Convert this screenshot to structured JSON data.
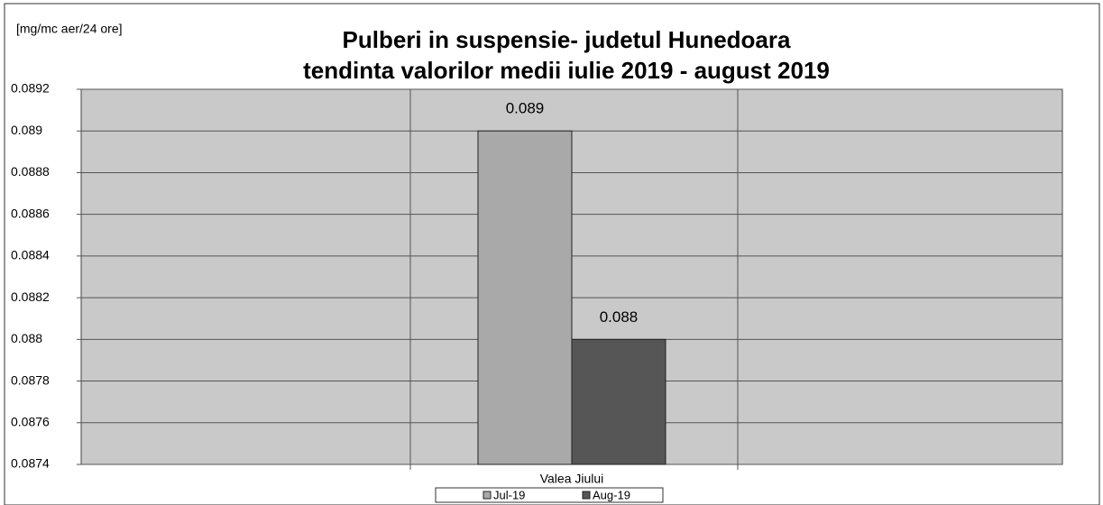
{
  "chart_data": {
    "type": "bar",
    "title": "Pulberi in suspensie- judetul Hunedoara",
    "subtitle": "tendinta valorilor medii iulie 2019 - august 2019",
    "y_axis_label": "[mg/mc aer/24 ore]",
    "categories": [
      "Valea Jiului"
    ],
    "series": [
      {
        "name": "Jul-19",
        "color": "#a9a9a9",
        "values": [
          0.089
        ]
      },
      {
        "name": "Aug-19",
        "color": "#565656",
        "values": [
          0.088
        ]
      }
    ],
    "ylim": [
      0.0874,
      0.0892
    ],
    "yticks": [
      0.0874,
      0.0876,
      0.0878,
      0.088,
      0.0882,
      0.0884,
      0.0886,
      0.0888,
      0.089,
      0.0892
    ],
    "grid": true,
    "legend": "bottom"
  }
}
